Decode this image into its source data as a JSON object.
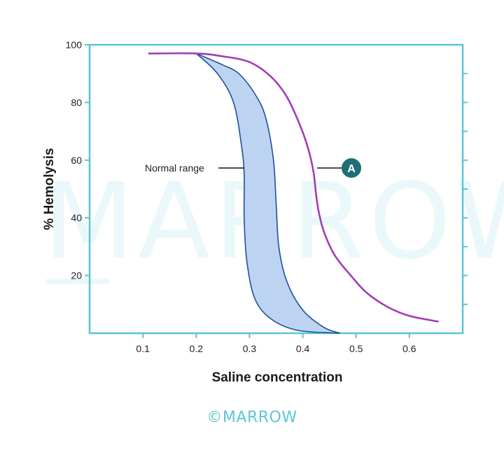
{
  "chart_data": {
    "type": "line",
    "xlabel": "Saline concentration",
    "ylabel": "% Hemolysis",
    "xlim": [
      0,
      0.7
    ],
    "ylim": [
      0,
      100
    ],
    "x_ticks": [
      "0.1",
      "0.2",
      "0.3",
      "0.4",
      "0.5",
      "0.6"
    ],
    "y_ticks": [
      "20",
      "40",
      "60",
      "80",
      "100"
    ],
    "grid": false,
    "normal_range_band": {
      "label": "Normal range",
      "left_edge": [
        [
          0.2,
          97
        ],
        [
          0.24,
          90
        ],
        [
          0.27,
          80
        ],
        [
          0.285,
          65
        ],
        [
          0.29,
          55
        ],
        [
          0.29,
          40
        ],
        [
          0.295,
          25
        ],
        [
          0.31,
          12
        ],
        [
          0.34,
          5
        ],
        [
          0.39,
          1
        ],
        [
          0.47,
          0
        ]
      ],
      "right_edge": [
        [
          0.2,
          97
        ],
        [
          0.25,
          93
        ],
        [
          0.28,
          90
        ],
        [
          0.31,
          83
        ],
        [
          0.33,
          75
        ],
        [
          0.345,
          60
        ],
        [
          0.35,
          45
        ],
        [
          0.355,
          30
        ],
        [
          0.37,
          18
        ],
        [
          0.4,
          8
        ],
        [
          0.44,
          2
        ],
        [
          0.47,
          0
        ]
      ],
      "color": "#bdd3f2",
      "stroke": "#1f5197"
    },
    "series": [
      {
        "name": "A",
        "color": "#a23cb8",
        "points": [
          [
            0.11,
            97
          ],
          [
            0.2,
            97
          ],
          [
            0.25,
            96
          ],
          [
            0.3,
            94
          ],
          [
            0.34,
            89
          ],
          [
            0.37,
            82
          ],
          [
            0.395,
            72
          ],
          [
            0.41,
            64
          ],
          [
            0.42,
            56
          ],
          [
            0.425,
            48
          ],
          [
            0.43,
            42
          ],
          [
            0.44,
            35
          ],
          [
            0.46,
            27
          ],
          [
            0.49,
            20
          ],
          [
            0.52,
            14
          ],
          [
            0.56,
            9
          ],
          [
            0.6,
            6
          ],
          [
            0.655,
            4
          ]
        ]
      }
    ],
    "annotation_badge": "A"
  },
  "watermark": {
    "text": "MARROW",
    "copyright": "©MARROW"
  },
  "colors": {
    "axis": "#5bc4d4",
    "badge": "#1f6d76"
  }
}
